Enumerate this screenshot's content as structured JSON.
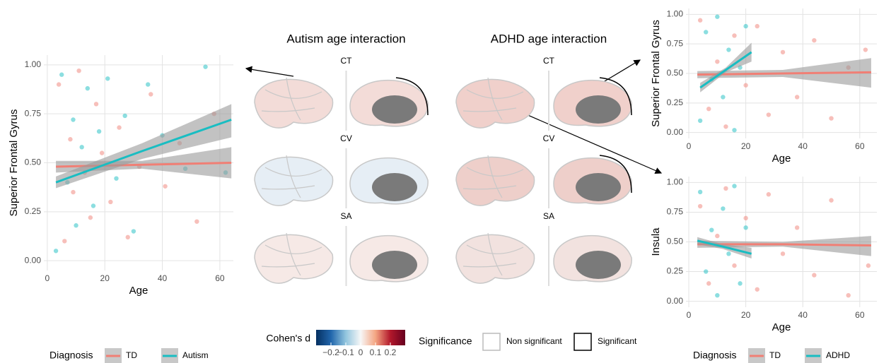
{
  "chart_data": [
    {
      "type": "scatter",
      "xlabel": "Age",
      "ylabel": "Superior Frontal Gyrus",
      "legend_title": "Diagnosis",
      "xlim": [
        -1.2,
        64.7
      ],
      "ylim": [
        -0.05,
        1.05
      ],
      "xticks": [
        0,
        20,
        40,
        60
      ],
      "yticks": [
        {
          "value": 0,
          "label": "0.00"
        },
        0.25,
        {
          "value": 0.5,
          "label": "0.50"
        },
        0.75,
        {
          "value": 1,
          "label": "1.00"
        }
      ],
      "series": [
        {
          "name": "TD",
          "color": "#f07f75",
          "x": [
            4,
            6,
            8,
            9,
            11,
            13,
            15,
            17,
            19,
            22,
            25,
            28,
            32,
            36,
            41,
            46,
            52,
            58
          ],
          "values": [
            0.9,
            0.1,
            0.62,
            0.35,
            0.97,
            0.45,
            0.22,
            0.8,
            0.55,
            0.3,
            0.68,
            0.12,
            0.48,
            0.85,
            0.38,
            0.6,
            0.2,
            0.75
          ],
          "fit": {
            "x": [
              3,
              33,
              64
            ],
            "values": [
              0.48,
              0.49,
              0.5
            ],
            "lower": [
              0.45,
              0.47,
              0.42
            ],
            "upper": [
              0.51,
              0.51,
              0.58
            ]
          }
        },
        {
          "name": "Autism",
          "color": "#19bdc2",
          "x": [
            3,
            5,
            7,
            9,
            10,
            12,
            14,
            16,
            18,
            21,
            24,
            27,
            30,
            35,
            40,
            48,
            55,
            62
          ],
          "values": [
            0.05,
            0.95,
            0.4,
            0.72,
            0.18,
            0.58,
            0.88,
            0.28,
            0.66,
            0.93,
            0.42,
            0.74,
            0.15,
            0.9,
            0.64,
            0.47,
            0.99,
            0.45
          ],
          "fit": {
            "x": [
              3,
              33,
              64
            ],
            "values": [
              0.4,
              0.56,
              0.72
            ],
            "lower": [
              0.37,
              0.52,
              0.63
            ],
            "upper": [
              0.43,
              0.6,
              0.8
            ]
          }
        }
      ]
    },
    {
      "type": "scatter",
      "xlabel": "Age",
      "ylabel": "Superior Frontal Gyrus",
      "xlim": [
        -1,
        66
      ],
      "ylim": [
        -0.05,
        1.05
      ],
      "xticks": [
        0,
        20,
        40,
        60
      ],
      "yticks": [
        {
          "value": 0,
          "label": "0.00"
        },
        0.25,
        {
          "value": 0.5,
          "label": "0.50"
        },
        0.75,
        {
          "value": 1,
          "label": "1.00"
        }
      ],
      "series": [
        {
          "name": "TD",
          "color": "#f07f75",
          "x": [
            4,
            7,
            10,
            13,
            16,
            20,
            24,
            28,
            33,
            38,
            44,
            50,
            56,
            62
          ],
          "values": [
            0.95,
            0.2,
            0.6,
            0.05,
            0.82,
            0.4,
            0.9,
            0.15,
            0.68,
            0.3,
            0.78,
            0.12,
            0.55,
            0.7
          ],
          "fit": {
            "x": [
              3,
              33,
              64
            ],
            "values": [
              0.49,
              0.5,
              0.51
            ],
            "lower": [
              0.46,
              0.47,
              0.38
            ],
            "upper": [
              0.52,
              0.53,
              0.63
            ]
          }
        },
        {
          "name": "ADHD",
          "color": "#19bdc2",
          "x": [
            4,
            6,
            8,
            10,
            12,
            14,
            16,
            18,
            20
          ],
          "values": [
            0.1,
            0.85,
            0.45,
            0.98,
            0.3,
            0.7,
            0.02,
            0.55,
            0.9
          ],
          "fit": {
            "x": [
              4,
              13,
              22
            ],
            "values": [
              0.38,
              0.53,
              0.68
            ],
            "lower": [
              0.34,
              0.51,
              0.6
            ],
            "upper": [
              0.42,
              0.55,
              0.76
            ]
          }
        }
      ]
    },
    {
      "type": "scatter",
      "xlabel": "Age",
      "ylabel": "Insula",
      "legend_title": "Diagnosis",
      "xlim": [
        -1,
        66
      ],
      "ylim": [
        -0.05,
        1.05
      ],
      "xticks": [
        0,
        20,
        40,
        60
      ],
      "yticks": [
        {
          "value": 0,
          "label": "0.00"
        },
        0.25,
        {
          "value": 0.5,
          "label": "0.50"
        },
        0.75,
        {
          "value": 1,
          "label": "1.00"
        }
      ],
      "series": [
        {
          "name": "TD",
          "color": "#f07f75",
          "x": [
            4,
            7,
            10,
            13,
            16,
            20,
            24,
            28,
            33,
            38,
            44,
            50,
            56,
            63
          ],
          "values": [
            0.8,
            0.15,
            0.55,
            0.95,
            0.3,
            0.7,
            0.1,
            0.9,
            0.4,
            0.62,
            0.22,
            0.85,
            0.05,
            0.3
          ],
          "fit": {
            "x": [
              3,
              33,
              64
            ],
            "values": [
              0.48,
              0.48,
              0.47
            ],
            "lower": [
              0.45,
              0.46,
              0.38
            ],
            "upper": [
              0.51,
              0.5,
              0.55
            ]
          }
        },
        {
          "name": "ADHD",
          "color": "#19bdc2",
          "x": [
            4,
            6,
            8,
            10,
            12,
            14,
            16,
            18,
            20
          ],
          "values": [
            0.92,
            0.25,
            0.6,
            0.05,
            0.78,
            0.4,
            0.97,
            0.15,
            0.62
          ],
          "fit": {
            "x": [
              3,
              12,
              22
            ],
            "values": [
              0.51,
              0.46,
              0.4
            ],
            "lower": [
              0.48,
              0.44,
              0.36
            ],
            "upper": [
              0.54,
              0.48,
              0.45
            ]
          }
        }
      ]
    }
  ],
  "brain_panels": {
    "titles": [
      "Autism age interaction",
      "ADHD age interaction"
    ],
    "rows": [
      [
        "CT",
        "CV",
        "SA"
      ],
      [
        "CT",
        "CV",
        "SA"
      ]
    ]
  },
  "colorbar": {
    "title": "Cohen's d",
    "lim": [
      -0.3,
      0.3
    ],
    "colors": [
      "#053061",
      "#2166ac",
      "#92c5de",
      "#f7f7f7",
      "#f4a582",
      "#b2182b",
      "#67001f"
    ],
    "ticks": [
      {
        "value": -0.2,
        "label": "−0.2"
      },
      {
        "value": -0.1,
        "label": "−0.1"
      },
      0,
      0.1,
      0.2
    ]
  },
  "significance": {
    "title": "Significance",
    "labels": [
      "Non significant",
      "Significant"
    ]
  }
}
